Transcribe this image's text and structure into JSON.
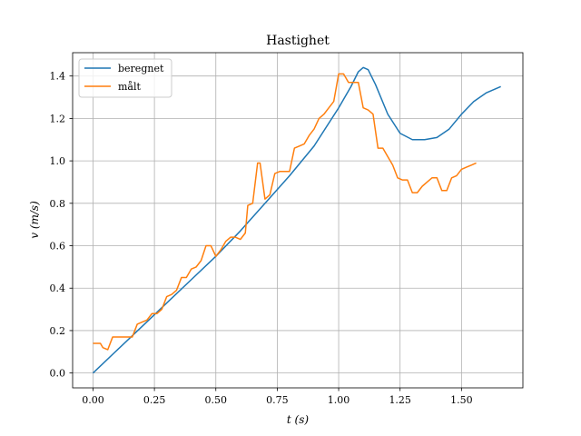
{
  "chart_data": {
    "type": "line",
    "title": "Hastighet",
    "xlabel": "t (s)",
    "ylabel": "v (m/s)",
    "xlim": [
      -0.083,
      1.75
    ],
    "ylim": [
      -0.07,
      1.51
    ],
    "xticks": [
      "0.00",
      "0.25",
      "0.50",
      "0.75",
      "1.00",
      "1.25",
      "1.50"
    ],
    "yticks": [
      "0.0",
      "0.2",
      "0.4",
      "0.6",
      "0.8",
      "1.0",
      "1.2",
      "1.4"
    ],
    "grid": true,
    "legend_position": "top-left",
    "series": [
      {
        "name": "beregnet",
        "color": "#1f77b4",
        "x": [
          0.0,
          0.1,
          0.2,
          0.3,
          0.4,
          0.5,
          0.6,
          0.7,
          0.8,
          0.9,
          1.0,
          1.05,
          1.08,
          1.1,
          1.12,
          1.15,
          1.2,
          1.25,
          1.3,
          1.35,
          1.4,
          1.45,
          1.5,
          1.55,
          1.6,
          1.66
        ],
        "y": [
          0.0,
          0.11,
          0.22,
          0.33,
          0.44,
          0.55,
          0.67,
          0.8,
          0.93,
          1.07,
          1.25,
          1.35,
          1.42,
          1.44,
          1.43,
          1.36,
          1.22,
          1.13,
          1.1,
          1.1,
          1.11,
          1.15,
          1.22,
          1.28,
          1.32,
          1.35
        ]
      },
      {
        "name": "målt",
        "color": "#ff7f0e",
        "x": [
          0.0,
          0.03,
          0.04,
          0.06,
          0.08,
          0.12,
          0.16,
          0.18,
          0.2,
          0.22,
          0.24,
          0.26,
          0.28,
          0.3,
          0.32,
          0.34,
          0.36,
          0.38,
          0.4,
          0.42,
          0.44,
          0.46,
          0.48,
          0.5,
          0.52,
          0.54,
          0.56,
          0.58,
          0.6,
          0.62,
          0.63,
          0.65,
          0.67,
          0.68,
          0.7,
          0.72,
          0.74,
          0.76,
          0.8,
          0.82,
          0.84,
          0.86,
          0.88,
          0.9,
          0.92,
          0.94,
          0.96,
          0.98,
          1.0,
          1.02,
          1.04,
          1.06,
          1.08,
          1.1,
          1.12,
          1.14,
          1.16,
          1.18,
          1.2,
          1.22,
          1.24,
          1.26,
          1.28,
          1.3,
          1.32,
          1.34,
          1.36,
          1.38,
          1.4,
          1.42,
          1.44,
          1.46,
          1.48,
          1.5,
          1.52,
          1.54,
          1.56
        ],
        "y": [
          0.14,
          0.14,
          0.12,
          0.11,
          0.17,
          0.17,
          0.17,
          0.23,
          0.24,
          0.25,
          0.28,
          0.28,
          0.3,
          0.36,
          0.37,
          0.39,
          0.45,
          0.45,
          0.49,
          0.5,
          0.53,
          0.6,
          0.6,
          0.55,
          0.58,
          0.62,
          0.64,
          0.64,
          0.63,
          0.66,
          0.79,
          0.8,
          0.99,
          0.99,
          0.82,
          0.84,
          0.94,
          0.95,
          0.95,
          1.06,
          1.07,
          1.08,
          1.12,
          1.15,
          1.2,
          1.22,
          1.25,
          1.28,
          1.41,
          1.41,
          1.37,
          1.37,
          1.37,
          1.25,
          1.24,
          1.22,
          1.06,
          1.06,
          1.02,
          0.98,
          0.92,
          0.91,
          0.91,
          0.85,
          0.85,
          0.88,
          0.9,
          0.92,
          0.92,
          0.86,
          0.86,
          0.92,
          0.93,
          0.96,
          0.97,
          0.98,
          0.99
        ]
      }
    ]
  }
}
